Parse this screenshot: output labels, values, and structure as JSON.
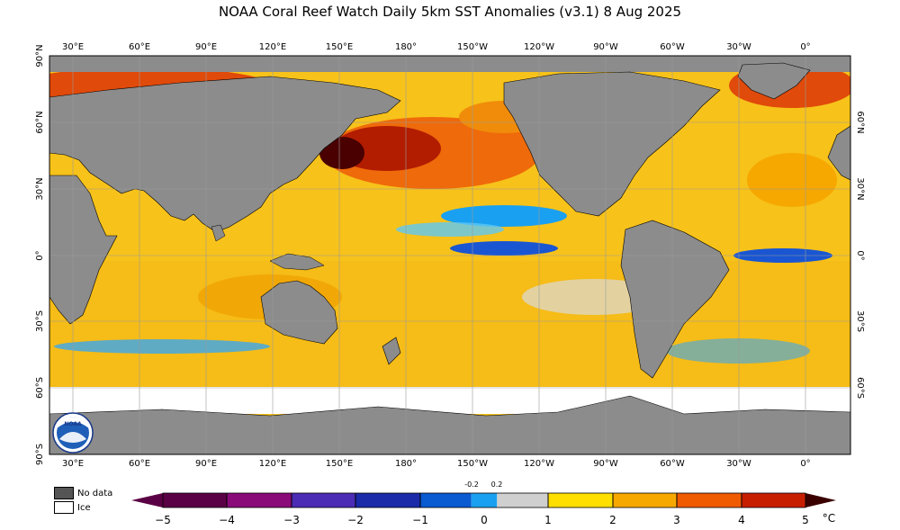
{
  "title": "NOAA Coral Reef Watch Daily 5km SST Anomalies  (v3.1)   8 Aug 2025",
  "top_lon_labels": [
    "30°E",
    "60°E",
    "90°E",
    "120°E",
    "150°E",
    "180°",
    "150°W",
    "120°W",
    "90°W",
    "60°W",
    "30°W",
    "0°"
  ],
  "bottom_lon_labels": [
    "30°E",
    "60°E",
    "90°E",
    "120°E",
    "150°E",
    "180°",
    "150°W",
    "120°W",
    "90°W",
    "60°W",
    "30°W",
    "0°"
  ],
  "left_lat_labels": [
    "90°N",
    "60°N",
    "30°N",
    "0°",
    "30°S",
    "60°S",
    "90°S"
  ],
  "right_lat_labels": [
    "60°N",
    "30°N",
    "0°",
    "30°S",
    "60°S"
  ],
  "legend": {
    "no_data_label": "No data",
    "ice_label": "Ice",
    "no_data_color": "#555555",
    "ice_color": "#ffffff"
  },
  "colorbar": {
    "tick_labels": [
      "−5",
      "−4",
      "−3",
      "−2",
      "−1",
      "0",
      "1",
      "2",
      "3",
      "4",
      "5"
    ],
    "small_labels": [
      "-0.2",
      "0.2"
    ],
    "unit": "°C",
    "colors": [
      "#5a0045",
      "#8a0a7a",
      "#4b2cb4",
      "#1a2aa8",
      "#0a5ad2",
      "#1aa0f0",
      "#cfcfcf",
      "#ffdf00",
      "#f6a800",
      "#f05a00",
      "#c81e00",
      "#6a0000"
    ]
  },
  "colors": {
    "land": "#8c8c8c",
    "ice": "#ffffff",
    "ocean_base": "#f7c21a"
  }
}
